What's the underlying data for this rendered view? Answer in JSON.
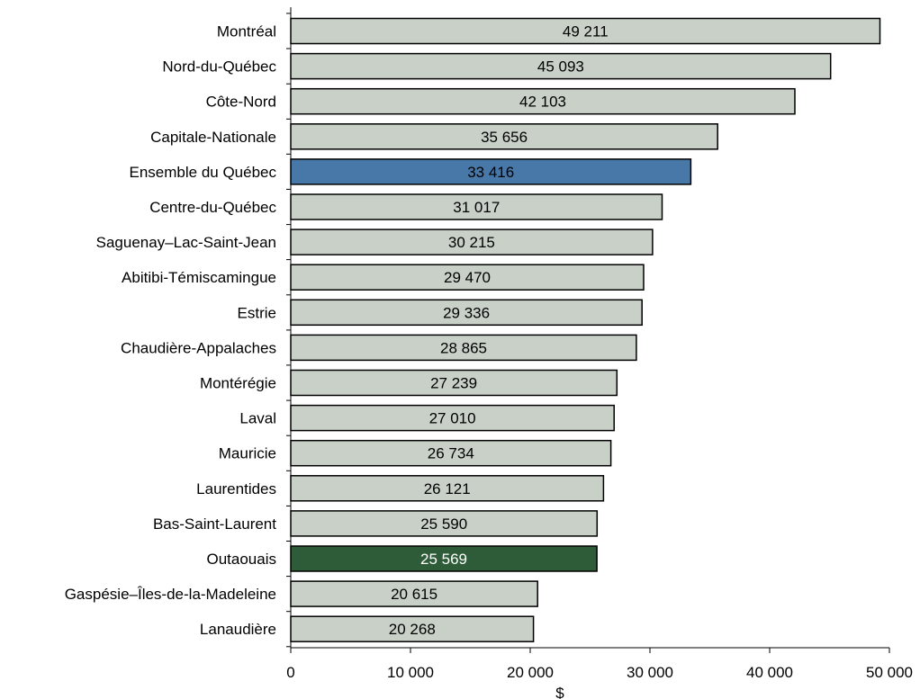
{
  "chart_data": {
    "type": "bar",
    "orientation": "horizontal",
    "categories": [
      "Montréal",
      "Nord-du-Québec",
      "Côte-Nord",
      "Capitale-Nationale",
      "Ensemble du Québec",
      "Centre-du-Québec",
      "Saguenay–Lac-Saint-Jean",
      "Abitibi-Témiscamingue",
      "Estrie",
      "Chaudière-Appalaches",
      "Montérégie",
      "Laval",
      "Mauricie",
      "Laurentides",
      "Bas-Saint-Laurent",
      "Outaouais",
      "Gaspésie–Îles-de-la-Madeleine",
      "Lanaudière"
    ],
    "values": [
      49211,
      45093,
      42103,
      35656,
      33416,
      31017,
      30215,
      29470,
      29336,
      28865,
      27239,
      27010,
      26734,
      26121,
      25590,
      25569,
      20615,
      20268
    ],
    "value_labels": [
      "49 211",
      "45 093",
      "42 103",
      "35 656",
      "33 416",
      "31 017",
      "30 215",
      "29 470",
      "29 336",
      "28 865",
      "27 239",
      "27 010",
      "26 734",
      "26 121",
      "25 590",
      "25 569",
      "20 615",
      "20 268"
    ],
    "xlim": [
      0,
      50000
    ],
    "x_ticks": [
      0,
      10000,
      20000,
      30000,
      40000,
      50000
    ],
    "x_tick_labels": [
      "0",
      "10 000",
      "20 000",
      "30 000",
      "40 000",
      "50 000"
    ],
    "xlabel": "$",
    "grid": false,
    "colors": {
      "default_bar": "#c8d0c8",
      "highlight_quebec": "#4878a8",
      "highlight_outaouais": "#2e5c38",
      "bar_border": "#000000"
    },
    "highlight": {
      "Ensemble du Québec": "highlight_quebec",
      "Outaouais": "highlight_outaouais"
    },
    "label_colors": {
      "default": "#000000",
      "Outaouais": "#ffffff"
    }
  }
}
